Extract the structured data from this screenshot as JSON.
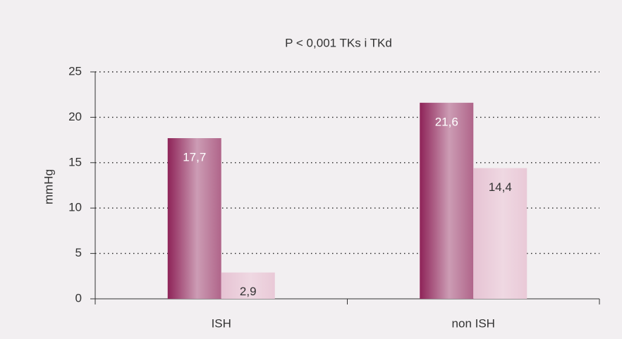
{
  "chart_data": {
    "type": "bar",
    "title": "P < 0,001 TKs i TKd",
    "y_label": "mmHg",
    "categories": [
      "ISH",
      "non ISH"
    ],
    "series": [
      {
        "color": "#8e2358",
        "values": [
          17.7,
          21.6
        ],
        "value_labels": [
          "17,7",
          "21,6"
        ]
      },
      {
        "color": "#e6c3d3",
        "values": [
          2.9,
          14.4
        ],
        "value_labels": [
          "2,9",
          "14,4"
        ]
      }
    ],
    "ylim": [
      0,
      25
    ],
    "yticks": [
      0,
      5,
      10,
      15,
      20,
      25
    ],
    "grid": true
  }
}
